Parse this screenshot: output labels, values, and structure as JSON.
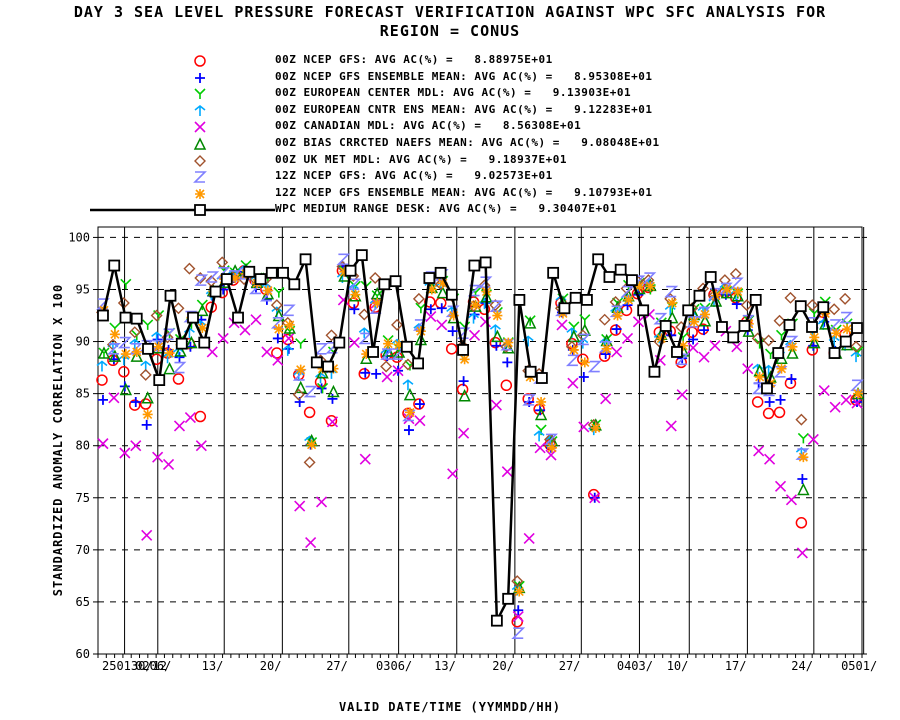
{
  "chart_data": {
    "type": "line",
    "title": "DAY 3 SEA LEVEL PRESSURE FORECAST VERIFICATION AGAINST WPC SFC ANALYSIS FOR",
    "subtitle": "REGION = CONUS",
    "xlabel": "VALID DATE/TIME (YYMMDD/HH)",
    "ylabel": "STANDARDIZED ANOMALY CORRELATION X 100",
    "ylim": [
      60,
      101
    ],
    "yticks": [
      60,
      65,
      70,
      75,
      80,
      85,
      90,
      95,
      100
    ],
    "xlim": [
      0,
      92
    ],
    "xticks": [
      {
        "x": 0,
        "label": "250130/12"
      },
      {
        "x": 4,
        "label": "0206/"
      },
      {
        "x": 12,
        "label": "13/"
      },
      {
        "x": 19,
        "label": "20/"
      },
      {
        "x": 27,
        "label": "27/"
      },
      {
        "x": 33,
        "label": "0306/"
      },
      {
        "x": 40,
        "label": "13/"
      },
      {
        "x": 47,
        "label": "20/"
      },
      {
        "x": 55,
        "label": "27/"
      },
      {
        "x": 62,
        "label": "0403/"
      },
      {
        "x": 68,
        "label": "10/"
      },
      {
        "x": 75,
        "label": "17/"
      },
      {
        "x": 83,
        "label": "24/"
      },
      {
        "x": 89,
        "label": "0501/"
      }
    ],
    "grid": true,
    "legend_position": "top",
    "series": [
      {
        "name": "00Z NCEP GFS: AVG AC(%) =",
        "avg": "8.88975E+01",
        "color": "#ff0000",
        "marker": "circle",
        "values": [
          86.3,
          88.2,
          87.1,
          83.9,
          84.0,
          88.3,
          88.9,
          86.4,
          89.8,
          82.8,
          93.3,
          94.7,
          95.9,
          96.8,
          95.9,
          95.0,
          88.9,
          90.2,
          86.8,
          83.2,
          86.1,
          82.4,
          96.8,
          93.7,
          86.9,
          93.3,
          88.7,
          88.5,
          83.1,
          84.0,
          93.8,
          93.7,
          89.3,
          85.4,
          93.8,
          93.1,
          89.9,
          85.8,
          63.1,
          84.5,
          83.5,
          80.1,
          93.7,
          89.8,
          88.3,
          75.3,
          88.6,
          91.1,
          93.0,
          94.6,
          95.2,
          90.9,
          91.0,
          88.0,
          90.9,
          91.2,
          94.5,
          94.7,
          94.2,
          91.9,
          84.2,
          83.1,
          83.2,
          86.0,
          72.6,
          89.2,
          92.8,
          88.9,
          90.7,
          84.4
        ]
      },
      {
        "name": "00Z NCEP GFS ENSEMBLE MEAN: AVG AC(%) =",
        "avg": "8.95308E+01",
        "color": "#0000ff",
        "marker": "plus",
        "values": [
          84.4,
          88.3,
          85.7,
          84.2,
          82.0,
          90.2,
          89.2,
          88.5,
          89.5,
          92.1,
          94.4,
          95.0,
          96.1,
          96.7,
          95.2,
          94.0,
          90.3,
          89.3,
          84.2,
          80.1,
          85.5,
          84.5,
          97.2,
          93.1,
          87.0,
          86.9,
          88.6,
          87.2,
          81.5,
          84.0,
          93.1,
          93.2,
          91.0,
          86.2,
          92.6,
          93.7,
          89.6,
          88.0,
          64.2,
          84.2,
          83.4,
          79.8,
          92.8,
          89.2,
          86.6,
          75.0,
          88.8,
          91.2,
          93.5,
          94.5,
          95.3,
          90.5,
          90.6,
          88.4,
          90.2,
          91.1,
          94.3,
          94.5,
          93.6,
          91.1,
          86.0,
          84.2,
          84.4,
          86.4,
          76.8,
          89.6,
          91.9,
          89.1,
          90.0,
          84.2
        ]
      }
    ]
  },
  "legend": [
    {
      "label": "00Z NCEP GFS: AVG AC(%) =   8.88975E+01",
      "color": "#ff0000",
      "marker": "circle"
    },
    {
      "label": "00Z NCEP GFS ENSEMBLE MEAN: AVG AC(%) =   8.95308E+01",
      "color": "#0000ff",
      "marker": "plus"
    },
    {
      "label": "00Z EUROPEAN CENTER MDL: AVG AC(%) =   9.13903E+01",
      "color": "#00cc00",
      "marker": "y"
    },
    {
      "label": "00Z EUROPEAN CNTR ENS MEAN: AVG AC(%) =   9.12283E+01",
      "color": "#00aaff",
      "marker": "arrow"
    },
    {
      "label": "00Z CANADIAN MDL: AVG AC(%) =   8.56308E+01",
      "color": "#e000e0",
      "marker": "x"
    },
    {
      "label": "00Z BIAS CRRCTED NAEFS MEAN: AVG AC(%) =   9.08048E+01",
      "color": "#008800",
      "marker": "triangle"
    },
    {
      "label": "00Z UK MET MDL: AVG AC(%) =   9.18937E+01",
      "color": "#a0522d",
      "marker": "diamond"
    },
    {
      "label": "12Z NCEP GFS: AVG AC(%) =   9.02573E+01",
      "color": "#8080ff",
      "marker": "z"
    },
    {
      "label": "12Z NCEP GFS ENSEMBLE MEAN: AVG AC(%) =   9.10793E+01",
      "color": "#ff9900",
      "marker": "star"
    },
    {
      "label": "WPC MEDIUM RANGE DESK: AVG AC(%) =   9.30407E+01",
      "color": "#000000",
      "marker": "square-line"
    }
  ],
  "extra_series": {
    "euro": {
      "color": "#00cc00",
      "marker": "y",
      "values": [
        88.9,
        91.3,
        95.5,
        90.6,
        91.6,
        92.5,
        90.8,
        90.2,
        91.7,
        93.5,
        94.4,
        96.8,
        96.6,
        97.3,
        96.1,
        96.1,
        94.7,
        91.0,
        89.8,
        80.3,
        85.5,
        89.0,
        96.8,
        95.3,
        95.3,
        94.4,
        90.1,
        89.3,
        87.7,
        93.2,
        95.8,
        95.8,
        94.1,
        91.4,
        94.7,
        94.5,
        92.8,
        89.9,
        66.5,
        92.0,
        81.5,
        80.4,
        94.1,
        91.4,
        92.1,
        82.0,
        90.2,
        93.7,
        95.4,
        95.6,
        95.0,
        91.8,
        93.3,
        90.4,
        93.1,
        93.2,
        94.6,
        94.8,
        94.6,
        92.0,
        89.8,
        88.8,
        90.6,
        91.7,
        80.7,
        92.7,
        93.8,
        91.1,
        91.7,
        89.0
      ]
    },
    "eens": {
      "color": "#00aaff",
      "marker": "arrow",
      "values": [
        87.6,
        89.4,
        88.2,
        89.7,
        87.6,
        90.4,
        88.4,
        88.9,
        90.8,
        91.5,
        94.5,
        95.9,
        96.4,
        96.8,
        95.8,
        95.1,
        92.8,
        89.1,
        86.7,
        80.4,
        86.5,
        86.9,
        96.1,
        95.0,
        90.8,
        93.6,
        88.8,
        89.7,
        85.8,
        91.2,
        95.3,
        95.2,
        92.8,
        88.6,
        92.2,
        93.6,
        91.1,
        89.4,
        66.1,
        90.0,
        80.9,
        80.4,
        93.9,
        90.8,
        89.8,
        81.5,
        89.8,
        92.8,
        94.1,
        95.3,
        95.5,
        90.3,
        93.0,
        89.1,
        92.4,
        92.9,
        93.8,
        95.1,
        94.5,
        91.4,
        87.3,
        87.2,
        88.8,
        89.6,
        79.3,
        90.8,
        91.6,
        90.0,
        89.6,
        88.5
      ]
    },
    "cmc": {
      "color": "#e000e0",
      "marker": "x",
      "values": [
        80.2,
        84.6,
        79.3,
        80.0,
        71.4,
        78.9,
        78.2,
        81.9,
        82.7,
        80.0,
        89.0,
        90.3,
        91.8,
        91.1,
        92.1,
        89.0,
        88.2,
        90.3,
        74.2,
        70.7,
        74.6,
        82.3,
        94.0,
        89.9,
        78.7,
        93.7,
        86.6,
        87.2,
        82.6,
        82.4,
        92.4,
        91.6,
        77.3,
        81.2,
        90.6,
        91.9,
        83.9,
        77.5,
        63.6,
        71.1,
        79.8,
        79.1,
        91.6,
        86.0,
        81.8,
        75.0,
        84.5,
        89.0,
        90.3,
        91.9,
        92.6,
        88.2,
        81.9,
        84.9,
        89.4,
        88.5,
        89.6,
        91.0,
        89.5,
        87.4,
        79.5,
        78.7,
        76.1,
        74.8,
        69.7,
        80.6,
        85.3,
        83.7,
        84.4,
        84.1
      ]
    },
    "naefs": {
      "color": "#008800",
      "marker": "triangle",
      "values": [
        88.9,
        88.6,
        85.4,
        88.6,
        84.6,
        89.4,
        87.4,
        89.1,
        89.9,
        93.0,
        94.9,
        95.7,
        96.8,
        96.9,
        95.7,
        94.6,
        92.5,
        91.3,
        85.6,
        80.5,
        87.0,
        85.2,
        96.3,
        94.4,
        88.4,
        94.6,
        89.1,
        89.0,
        84.9,
        90.2,
        95.2,
        94.7,
        92.3,
        84.8,
        93.4,
        94.3,
        90.5,
        89.4,
        66.4,
        91.8,
        83.0,
        80.5,
        93.8,
        90.5,
        91.1,
        82.0,
        90.1,
        93.3,
        94.4,
        95.1,
        95.4,
        90.7,
        92.3,
        89.1,
        92.6,
        92.0,
        93.9,
        94.7,
        94.4,
        91.0,
        87.2,
        86.6,
        88.4,
        88.9,
        75.8,
        89.9,
        91.7,
        88.9,
        89.7,
        85.0
      ]
    },
    "ukmet": {
      "color": "#a0522d",
      "marker": "diamond",
      "values": [
        92.8,
        89.7,
        93.7,
        90.9,
        86.8,
        92.5,
        90.4,
        93.2,
        97.0,
        96.1,
        95.8,
        97.6,
        96.2,
        96.0,
        96.0,
        96.0,
        93.5,
        91.8,
        84.9,
        78.4,
        88.2,
        90.6,
        97.2,
        96.3,
        92.6,
        96.1,
        87.6,
        91.6,
        87.8,
        94.1,
        96.0,
        95.5,
        94.4,
        89.6,
        93.4,
        95.4,
        93.5,
        89.5,
        67.0,
        87.2,
        86.9,
        80.6,
        93.2,
        89.5,
        90.6,
        82.0,
        92.1,
        93.8,
        95.1,
        95.8,
        95.9,
        90.0,
        94.1,
        91.4,
        93.2,
        95.1,
        94.4,
        95.9,
        96.5,
        93.5,
        90.3,
        90.1,
        92.0,
        94.2,
        82.5,
        93.5,
        93.0,
        93.1,
        94.1,
        89.5
      ]
    },
    "gfs12": {
      "color": "#8080ff",
      "marker": "z",
      "values": [
        93.6,
        89.3,
        89.9,
        89.3,
        89.6,
        89.6,
        90.7,
        87.5,
        92.4,
        95.9,
        96.2,
        96.6,
        96.3,
        96.5,
        95.1,
        94.4,
        91.8,
        93.0,
        86.8,
        85.2,
        89.3,
        89.4,
        97.9,
        95.5,
        90.3,
        93.2,
        88.8,
        88.8,
        82.9,
        91.6,
        96.2,
        96.4,
        92.9,
        90.8,
        94.9,
        95.7,
        93.4,
        89.7,
        62.0,
        84.4,
        86.5,
        80.6,
        93.0,
        88.2,
        90.2,
        87.6,
        89.5,
        92.9,
        94.8,
        95.8,
        96.1,
        92.2,
        94.8,
        88.3,
        91.9,
        92.8,
        94.6,
        95.1,
        95.6,
        92.0,
        85.5,
        85.3,
        87.1,
        90.0,
        79.2,
        91.8,
        93.2,
        91.6,
        92.3,
        85.8
      ]
    },
    "gefs12": {
      "color": "#ff9900",
      "marker": "star",
      "values": [
        93.0,
        90.7,
        88.8,
        89.0,
        83.0,
        89.5,
        88.9,
        89.7,
        92.3,
        91.3,
        94.8,
        96.0,
        96.1,
        96.5,
        95.6,
        94.9,
        91.2,
        91.6,
        87.3,
        80.1,
        87.4,
        87.4,
        96.7,
        94.5,
        88.8,
        93.7,
        89.8,
        89.7,
        83.2,
        91.0,
        95.0,
        95.6,
        92.5,
        88.3,
        93.5,
        94.8,
        92.5,
        89.9,
        66.0,
        86.6,
        84.2,
        79.8,
        92.7,
        89.2,
        88.0,
        81.7,
        89.3,
        92.5,
        94.0,
        95.3,
        95.3,
        90.3,
        93.7,
        89.6,
        91.9,
        92.6,
        94.4,
        95.0,
        94.8,
        91.7,
        86.6,
        86.0,
        87.4,
        89.5,
        78.9,
        90.4,
        92.7,
        90.8,
        91.2,
        85.0
      ]
    },
    "wpc": {
      "color": "#000000",
      "marker": "square-line",
      "values": [
        92.5,
        97.3,
        92.3,
        92.2,
        89.3,
        86.3,
        94.4,
        89.8,
        92.3,
        89.9,
        94.8,
        96.0,
        92.3,
        96.7,
        96.0,
        96.6,
        96.6,
        95.5,
        97.9,
        88.0,
        87.6,
        89.9,
        96.8,
        98.3,
        89.0,
        95.5,
        95.8,
        89.5,
        87.9,
        96.1,
        96.6,
        94.5,
        89.2,
        97.3,
        97.6,
        63.2,
        65.3,
        94.0,
        87.1,
        86.5,
        96.6,
        93.2,
        94.2,
        94.0,
        97.9,
        96.2,
        96.9,
        95.9,
        93.0,
        87.1,
        91.5,
        89.0,
        93.0,
        94.4,
        96.2,
        91.4,
        90.4,
        91.5,
        94.0,
        85.5,
        88.9,
        91.6,
        93.4,
        91.4,
        93.3,
        88.9,
        90.0,
        91.3
      ]
    }
  }
}
